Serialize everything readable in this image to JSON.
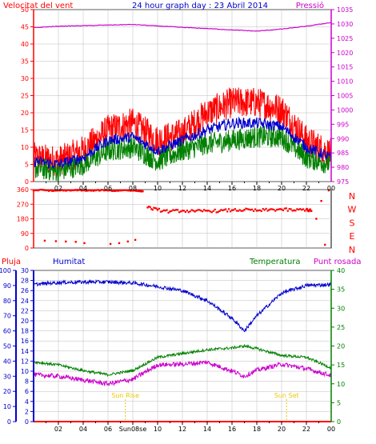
{
  "top": {
    "title": "24 hour graph day : 23 Abril 2014",
    "left_label": "Velocitat del vent",
    "right_label": "Pressió",
    "left_ticks": [
      0,
      5,
      10,
      15,
      20,
      25,
      30,
      35,
      40,
      45,
      50
    ],
    "right_ticks": [
      975,
      980,
      985,
      990,
      995,
      1000,
      1005,
      1010,
      1015,
      1020,
      1025,
      1030,
      1035
    ],
    "x_ticks": [
      "02",
      "04",
      "06",
      "08",
      "10",
      "12",
      "14",
      "16",
      "18",
      "20",
      "22",
      "00"
    ]
  },
  "dir": {
    "ticks": [
      0,
      90,
      180,
      270,
      360
    ],
    "compass": [
      "N",
      "W",
      "S",
      "E",
      "N"
    ]
  },
  "bottom": {
    "labels": {
      "rain": "Pluja",
      "humidity": "Humitat",
      "temperature": "Temperatura",
      "dewpoint": "Punt rosada"
    },
    "rain_ticks": [
      0,
      10,
      20,
      30,
      40,
      50,
      60,
      70,
      80,
      90,
      100
    ],
    "hum_ticks": [
      0,
      2,
      4,
      6,
      8,
      10,
      12,
      14,
      16,
      18,
      20,
      22,
      24,
      26,
      28,
      30
    ],
    "temp_ticks": [
      0,
      5,
      10,
      15,
      20,
      25,
      30,
      35,
      40
    ],
    "x_ticks": [
      "02",
      "04",
      "06",
      "Sun08se",
      "10",
      "12",
      "14",
      "16",
      "18",
      "20",
      "22",
      "00"
    ],
    "sunrise": "Sun Rise",
    "sunset": "Sun Set"
  },
  "colors": {
    "gust": "#ff0000",
    "wind": "#0000cc",
    "avg": "#008000",
    "pressure": "#cc00cc",
    "direction": "#ff0000",
    "humidity": "#0000cc",
    "temperature": "#008000",
    "dewpoint": "#cc00cc",
    "rain": "#ff0000",
    "grid": "#bbbbbb",
    "sun": "#e8c800"
  },
  "chart_data": [
    {
      "type": "line",
      "title": "24 hour graph day : 23 Abril 2014",
      "x": [
        0,
        2,
        4,
        6,
        8,
        10,
        12,
        14,
        16,
        18,
        20,
        22,
        24
      ],
      "x_tick_labels": [
        "00",
        "02",
        "04",
        "06",
        "08",
        "10",
        "12",
        "14",
        "16",
        "18",
        "20",
        "22",
        "00"
      ],
      "ylim": [
        0,
        50
      ],
      "y2lim": [
        975,
        1035
      ],
      "series": [
        {
          "name": "Velocitat del vent",
          "axis": "left",
          "values": [
            7,
            6,
            9,
            15,
            17,
            12,
            14,
            20,
            23,
            23,
            21,
            12,
            8
          ]
        },
        {
          "axis": "left",
          "values": [
            6,
            5,
            7,
            12,
            13,
            9,
            12,
            15,
            17,
            17,
            16,
            10,
            7
          ]
        },
        {
          "axis": "left",
          "values": [
            4,
            3,
            5,
            9,
            10,
            6,
            9,
            11,
            12,
            13,
            13,
            7,
            5
          ]
        },
        {
          "name": "Pressió",
          "axis": "right",
          "values": [
            1028.7,
            1029.2,
            1029.4,
            1029.6,
            1029.8,
            1029.3,
            1028.8,
            1028.4,
            1027.9,
            1027.5,
            1028.2,
            1029.2,
            1030.5
          ]
        }
      ]
    },
    {
      "type": "scatter",
      "compass_labels": [
        "N",
        "W",
        "S",
        "E",
        "N"
      ],
      "ylim": [
        0,
        360
      ],
      "series": [
        {
          "x": [
            0.0,
            0.8,
            1.5,
            2.2,
            3.0,
            3.6,
            4.3,
            5.0,
            5.8,
            6.5,
            7.2,
            7.9,
            8.5,
            8.8
          ],
          "values": [
            355,
            358,
            352,
            356,
            354,
            358,
            353,
            355,
            357,
            352,
            356,
            355,
            352,
            350
          ]
        },
        {
          "x": [
            0.9,
            1.8,
            2.6,
            3.4,
            4.1,
            6.2,
            6.9,
            7.6,
            8.2
          ],
          "values": [
            45,
            42,
            40,
            38,
            30,
            25,
            30,
            40,
            50
          ]
        },
        {
          "x": [
            9.2,
            10.0,
            11.0,
            12.0,
            13.0,
            14.0,
            15.0,
            16.0,
            17.0,
            18.0,
            19.0,
            20.0,
            21.0,
            22.0,
            22.4
          ],
          "values": [
            250,
            235,
            225,
            230,
            225,
            230,
            228,
            233,
            235,
            230,
            235,
            238,
            232,
            238,
            228
          ]
        },
        {
          "x": [
            22.8,
            23.2,
            23.5,
            23.8
          ],
          "values": [
            180,
            290,
            20,
            355
          ]
        }
      ]
    },
    {
      "type": "line",
      "x": [
        0,
        2,
        4,
        6,
        8,
        10,
        12,
        14,
        16,
        17,
        18,
        20,
        22,
        24
      ],
      "x_tick_labels": [
        "00",
        "02",
        "04",
        "06",
        "Sun08se",
        "10",
        "12",
        "14",
        "16",
        "18",
        "20",
        "22",
        "00"
      ],
      "annotations": [
        {
          "label": "Sun Rise",
          "x": 7.4
        },
        {
          "label": "Sun Set",
          "x": 20.4
        }
      ],
      "rain_lim": [
        0,
        100
      ],
      "humidity_lim": [
        0,
        30
      ],
      "temp_lim": [
        0,
        40
      ],
      "series": [
        {
          "name": "Humitat",
          "axis": "humidity",
          "values": [
            27.2,
            27.6,
            27.7,
            27.7,
            27.5,
            26.8,
            26.0,
            24.0,
            20.5,
            18.0,
            21.0,
            25.5,
            27.0,
            27.2
          ]
        },
        {
          "name": "Temperatura",
          "axis": "temp",
          "values": [
            15.8,
            15.0,
            13.5,
            12.4,
            13.5,
            17.0,
            18.0,
            19.0,
            19.5,
            20.0,
            19.3,
            17.5,
            17.0,
            14.2
          ]
        },
        {
          "name": "Punt rosada",
          "axis": "temp",
          "values": [
            12.4,
            12.0,
            11.0,
            10.0,
            11.2,
            15.0,
            15.2,
            15.7,
            13.4,
            12.0,
            13.6,
            15.2,
            14.0,
            12.2
          ]
        },
        {
          "name": "Pluja",
          "axis": "rain",
          "values": [
            0,
            0,
            0,
            0,
            0,
            0,
            0,
            0,
            0,
            0,
            0,
            0,
            0,
            0
          ]
        }
      ]
    }
  ]
}
